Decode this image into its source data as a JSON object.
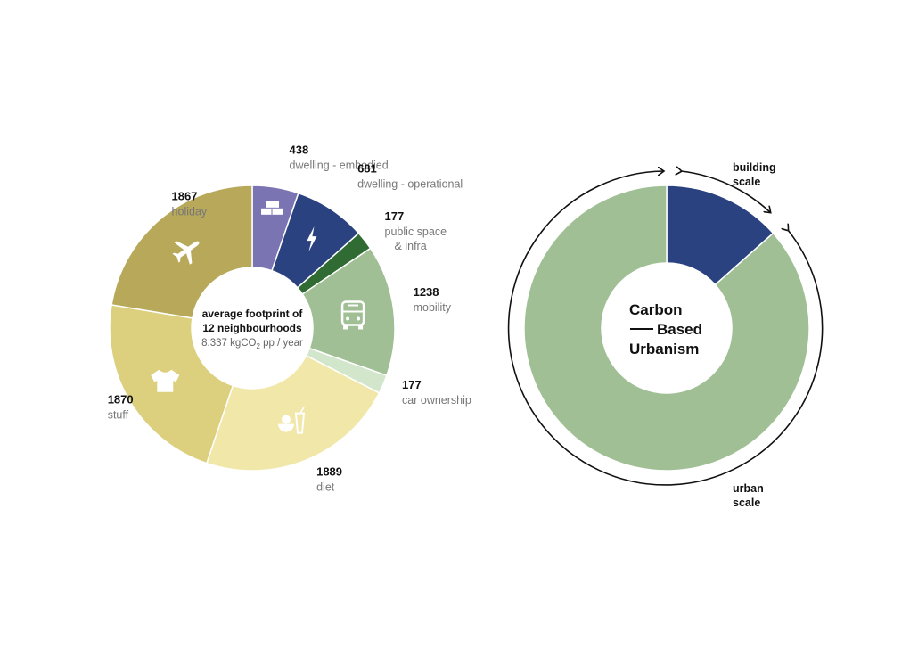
{
  "chart_data": [
    {
      "type": "pie",
      "subtype": "donut",
      "center_text": {
        "line1": "average footprint of",
        "line2": "12 neighbourhoods",
        "line3_prefix": "8.337 kgCO",
        "line3_sub": "2",
        "line3_suffix": " pp / year"
      },
      "slices": [
        {
          "value": 438,
          "value_label": "438",
          "label": "dwelling - embodied",
          "color": "#7b74b3",
          "icon": "bricks-icon"
        },
        {
          "value": 681,
          "value_label": "681",
          "label": "dwelling - operational",
          "color": "#2a4380",
          "icon": "lightning-icon"
        },
        {
          "value": 177,
          "value_label": "177",
          "label": "public space\n& infra",
          "color": "#2f6b32",
          "icon": ""
        },
        {
          "value": 1238,
          "value_label": "1238",
          "label": "mobility",
          "color": "#a0bf94",
          "icon": "bus-icon"
        },
        {
          "value": 177,
          "value_label": "177",
          "label": "car ownership",
          "color": "#d2e6cc",
          "icon": ""
        },
        {
          "value": 1889,
          "value_label": "1889",
          "label": "diet",
          "color": "#f0e7a8",
          "icon": "food-icon"
        },
        {
          "value": 1870,
          "value_label": "1870",
          "label": "stuff",
          "color": "#dccf7e",
          "icon": "tshirt-icon"
        },
        {
          "value": 1867,
          "value_label": "1867",
          "label": "holiday",
          "color": "#b8a85a",
          "icon": "airplane-icon"
        }
      ]
    },
    {
      "type": "pie",
      "subtype": "donut",
      "center_text": {
        "line1": "Carbon",
        "line2": "Based",
        "line3": "Urbanism"
      },
      "slices": [
        {
          "label": "building scale",
          "value": 1119,
          "color": "#2a4380"
        },
        {
          "label": "urban scale",
          "value": 7218,
          "color": "#a0bf94"
        }
      ],
      "annotations": [
        {
          "label": "building\nscale",
          "arrow": "double-headed arc around building slice"
        },
        {
          "label": "urban\nscale",
          "arrow": "double-headed arc around urban slice"
        }
      ]
    }
  ]
}
